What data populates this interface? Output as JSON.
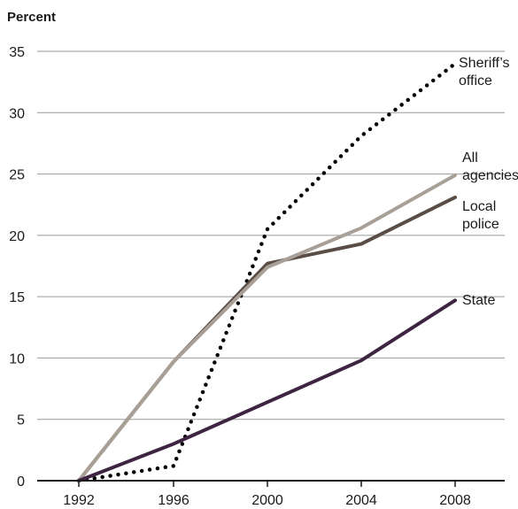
{
  "chart_data": {
    "type": "line",
    "ylabel": "Percent",
    "xlabel": "",
    "x": [
      1992,
      1996,
      2000,
      2004,
      2008
    ],
    "ylim": [
      0,
      35
    ],
    "yticks": [
      0,
      5,
      10,
      15,
      20,
      25,
      30,
      35
    ],
    "grid": true,
    "series": [
      {
        "name": "Sheriff's office",
        "label_lines": [
          "Sheriff’s",
          "office"
        ],
        "values": [
          0,
          1.2,
          20.5,
          28.1,
          34.0
        ],
        "color": "#000000",
        "style": "dotted"
      },
      {
        "name": "All agencies",
        "label_lines": [
          "All",
          "agencies"
        ],
        "values": [
          0,
          9.7,
          17.4,
          20.6,
          24.9
        ],
        "color": "#a89f97",
        "style": "solid"
      },
      {
        "name": "Local police",
        "label_lines": [
          "Local",
          "police"
        ],
        "values": [
          0,
          9.7,
          17.7,
          19.3,
          23.1
        ],
        "color": "#5a4d45",
        "style": "solid"
      },
      {
        "name": "State",
        "label_lines": [
          "State"
        ],
        "values": [
          0,
          3.0,
          6.4,
          9.8,
          14.7
        ],
        "color": "#3d2541",
        "style": "solid"
      }
    ]
  }
}
